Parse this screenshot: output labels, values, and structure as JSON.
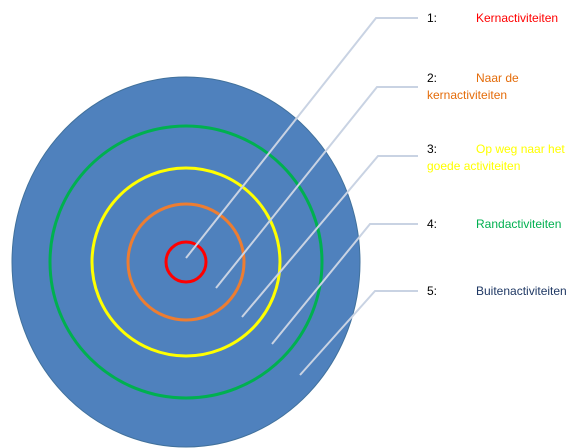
{
  "diagram": {
    "circle_colors": {
      "disk": "#4f81bd",
      "disk_outline": "#41719c",
      "ring_5": "#00b050",
      "ring_4": "#ffff00",
      "ring_3": "#ed7d31",
      "ring_1": "#ff0000",
      "leader": "#c9d3e3"
    },
    "levels": [
      {
        "number": "1:",
        "text": "Kernactiviteiten",
        "color": "#ff0000"
      },
      {
        "number": "2:",
        "text": "Naar de kernactiviteiten",
        "color": "#e46c0a"
      },
      {
        "number": "3:",
        "text": "Op weg naar het goede activiteiten",
        "color": "#ffff00"
      },
      {
        "number": "4:",
        "text": "Randactiviteiten",
        "color": "#00b050"
      },
      {
        "number": "5:",
        "text": "Buitenactiviteiten",
        "color": "#1f3864"
      }
    ]
  }
}
